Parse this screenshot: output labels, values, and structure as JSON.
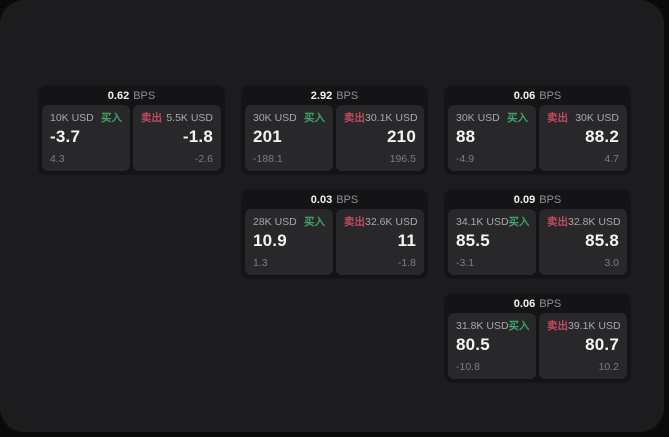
{
  "labels": {
    "bps": "BPS",
    "buy": "买入",
    "sell": "卖出"
  },
  "colors": {
    "page-bg": "#0a0a0b",
    "surface-bg": "#1c1c1e",
    "card-bg": "#141416",
    "tile-bg": "#28282b",
    "value-text": "#f4f4f5",
    "label-text": "#a9a9ac",
    "sub-text": "#7d7d80",
    "bps-text": "#919194",
    "buy-green": "#3fa368",
    "sell-red": "#c24a5e"
  },
  "cards": [
    {
      "bps": "0.62",
      "buy": {
        "size": "10K USD",
        "value": "-3.7",
        "sub": "4.3"
      },
      "sell": {
        "size": "5.5K USD",
        "value": "-1.8",
        "sub": "-2.6"
      }
    },
    {
      "bps": "2.92",
      "buy": {
        "size": "30K USD",
        "value": "201",
        "sub": "-188.1"
      },
      "sell": {
        "size": "30.1K USD",
        "value": "210",
        "sub": "196.5"
      }
    },
    {
      "bps": "0.06",
      "buy": {
        "size": "30K USD",
        "value": "88",
        "sub": "-4.9"
      },
      "sell": {
        "size": "30K USD",
        "value": "88.2",
        "sub": "4.7"
      }
    },
    {
      "bps": "0.03",
      "buy": {
        "size": "28K USD",
        "value": "10.9",
        "sub": "1.3"
      },
      "sell": {
        "size": "32.6K USD",
        "value": "11",
        "sub": "-1.8"
      }
    },
    {
      "bps": "0.09",
      "buy": {
        "size": "34.1K USD",
        "value": "85.5",
        "sub": "-3.1"
      },
      "sell": {
        "size": "32.8K USD",
        "value": "85.8",
        "sub": "3.0"
      }
    },
    {
      "bps": "0.06",
      "buy": {
        "size": "31.8K USD",
        "value": "80.5",
        "sub": "-10.8"
      },
      "sell": {
        "size": "39.1K USD",
        "value": "80.7",
        "sub": "10.2"
      }
    }
  ]
}
